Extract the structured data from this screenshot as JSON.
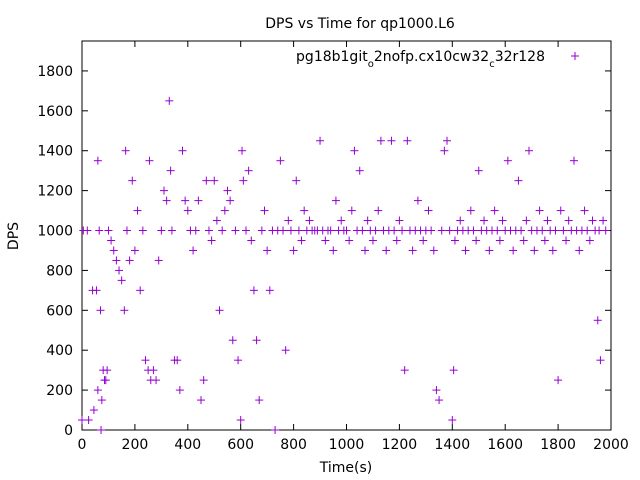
{
  "chart_data": {
    "type": "scatter",
    "title": "DPS vs Time for qp1000.L6",
    "xlabel": "Time(s)",
    "ylabel": "DPS",
    "xlim": [
      0,
      2000
    ],
    "ylim": [
      0,
      1950
    ],
    "xticks": [
      0,
      200,
      400,
      600,
      800,
      1000,
      1200,
      1400,
      1600,
      1800,
      2000
    ],
    "yticks": [
      0,
      200,
      400,
      600,
      800,
      1000,
      1200,
      1400,
      1600,
      1800
    ],
    "grid": false,
    "legend_position": "top-right",
    "marker": "plus",
    "color": "#9400d3",
    "series": [
      {
        "name_parts": [
          {
            "text": "pg18b1git",
            "sub": false
          },
          {
            "text": "o",
            "sub": true
          },
          {
            "text": "2nofp.cx10cw32",
            "sub": false
          },
          {
            "text": "c",
            "sub": true
          },
          {
            "text": "32r128",
            "sub": false
          }
        ],
        "points": [
          [
            0,
            50
          ],
          [
            5,
            1000
          ],
          [
            20,
            1000
          ],
          [
            25,
            50
          ],
          [
            40,
            700
          ],
          [
            45,
            100
          ],
          [
            55,
            700
          ],
          [
            60,
            1350
          ],
          [
            60,
            200
          ],
          [
            65,
            1000
          ],
          [
            70,
            600
          ],
          [
            72,
            0
          ],
          [
            75,
            150
          ],
          [
            80,
            300
          ],
          [
            85,
            250
          ],
          [
            90,
            250
          ],
          [
            95,
            300
          ],
          [
            100,
            1000
          ],
          [
            110,
            950
          ],
          [
            120,
            900
          ],
          [
            130,
            850
          ],
          [
            140,
            800
          ],
          [
            150,
            750
          ],
          [
            160,
            600
          ],
          [
            165,
            1400
          ],
          [
            170,
            1000
          ],
          [
            180,
            850
          ],
          [
            190,
            1250
          ],
          [
            200,
            900
          ],
          [
            210,
            1100
          ],
          [
            220,
            700
          ],
          [
            230,
            1000
          ],
          [
            240,
            350
          ],
          [
            250,
            300
          ],
          [
            255,
            1350
          ],
          [
            260,
            250
          ],
          [
            270,
            300
          ],
          [
            280,
            250
          ],
          [
            290,
            850
          ],
          [
            300,
            1000
          ],
          [
            310,
            1200
          ],
          [
            320,
            1150
          ],
          [
            330,
            1650
          ],
          [
            335,
            1300
          ],
          [
            340,
            1000
          ],
          [
            350,
            350
          ],
          [
            360,
            350
          ],
          [
            370,
            200
          ],
          [
            380,
            1400
          ],
          [
            390,
            1150
          ],
          [
            400,
            1100
          ],
          [
            410,
            1000
          ],
          [
            420,
            900
          ],
          [
            430,
            1000
          ],
          [
            440,
            1150
          ],
          [
            450,
            150
          ],
          [
            460,
            250
          ],
          [
            470,
            1250
          ],
          [
            480,
            1000
          ],
          [
            490,
            950
          ],
          [
            500,
            1250
          ],
          [
            510,
            1050
          ],
          [
            520,
            600
          ],
          [
            530,
            1000
          ],
          [
            540,
            1100
          ],
          [
            550,
            1200
          ],
          [
            560,
            1150
          ],
          [
            570,
            450
          ],
          [
            580,
            1000
          ],
          [
            590,
            350
          ],
          [
            600,
            50
          ],
          [
            605,
            1400
          ],
          [
            610,
            1250
          ],
          [
            620,
            1000
          ],
          [
            630,
            1300
          ],
          [
            640,
            950
          ],
          [
            650,
            700
          ],
          [
            660,
            450
          ],
          [
            670,
            150
          ],
          [
            680,
            1000
          ],
          [
            690,
            1100
          ],
          [
            700,
            900
          ],
          [
            710,
            700
          ],
          [
            720,
            1000
          ],
          [
            730,
            0
          ],
          [
            740,
            1000
          ],
          [
            750,
            1350
          ],
          [
            760,
            1000
          ],
          [
            770,
            400
          ],
          [
            780,
            1050
          ],
          [
            790,
            1000
          ],
          [
            800,
            900
          ],
          [
            810,
            1250
          ],
          [
            820,
            1000
          ],
          [
            830,
            950
          ],
          [
            840,
            1100
          ],
          [
            850,
            1000
          ],
          [
            860,
            1050
          ],
          [
            870,
            1000
          ],
          [
            880,
            1000
          ],
          [
            890,
            1000
          ],
          [
            900,
            1450
          ],
          [
            910,
            1000
          ],
          [
            920,
            950
          ],
          [
            930,
            1000
          ],
          [
            940,
            1000
          ],
          [
            950,
            900
          ],
          [
            960,
            1150
          ],
          [
            970,
            1000
          ],
          [
            980,
            1050
          ],
          [
            990,
            1000
          ],
          [
            1000,
            1000
          ],
          [
            1010,
            950
          ],
          [
            1020,
            1100
          ],
          [
            1030,
            1400
          ],
          [
            1040,
            1000
          ],
          [
            1050,
            1300
          ],
          [
            1060,
            1000
          ],
          [
            1070,
            900
          ],
          [
            1080,
            1050
          ],
          [
            1090,
            1000
          ],
          [
            1100,
            950
          ],
          [
            1110,
            1000
          ],
          [
            1120,
            1100
          ],
          [
            1130,
            1450
          ],
          [
            1140,
            1000
          ],
          [
            1150,
            900
          ],
          [
            1160,
            1000
          ],
          [
            1170,
            1450
          ],
          [
            1180,
            1000
          ],
          [
            1190,
            950
          ],
          [
            1200,
            1050
          ],
          [
            1210,
            1000
          ],
          [
            1220,
            300
          ],
          [
            1230,
            1450
          ],
          [
            1240,
            1000
          ],
          [
            1250,
            900
          ],
          [
            1260,
            1000
          ],
          [
            1270,
            1150
          ],
          [
            1280,
            1000
          ],
          [
            1290,
            950
          ],
          [
            1300,
            1000
          ],
          [
            1310,
            1100
          ],
          [
            1320,
            1000
          ],
          [
            1330,
            900
          ],
          [
            1340,
            200
          ],
          [
            1350,
            150
          ],
          [
            1360,
            1000
          ],
          [
            1370,
            1400
          ],
          [
            1380,
            1450
          ],
          [
            1390,
            1000
          ],
          [
            1400,
            50
          ],
          [
            1405,
            300
          ],
          [
            1410,
            950
          ],
          [
            1420,
            1000
          ],
          [
            1430,
            1050
          ],
          [
            1440,
            1000
          ],
          [
            1450,
            900
          ],
          [
            1460,
            1000
          ],
          [
            1470,
            1100
          ],
          [
            1480,
            1000
          ],
          [
            1490,
            950
          ],
          [
            1500,
            1300
          ],
          [
            1510,
            1000
          ],
          [
            1520,
            1050
          ],
          [
            1530,
            1000
          ],
          [
            1540,
            900
          ],
          [
            1550,
            1000
          ],
          [
            1560,
            1100
          ],
          [
            1570,
            1000
          ],
          [
            1580,
            950
          ],
          [
            1590,
            1050
          ],
          [
            1600,
            1000
          ],
          [
            1610,
            1350
          ],
          [
            1620,
            1000
          ],
          [
            1630,
            900
          ],
          [
            1640,
            1000
          ],
          [
            1650,
            1250
          ],
          [
            1660,
            1000
          ],
          [
            1670,
            950
          ],
          [
            1680,
            1050
          ],
          [
            1690,
            1400
          ],
          [
            1700,
            1000
          ],
          [
            1710,
            900
          ],
          [
            1720,
            1000
          ],
          [
            1730,
            1100
          ],
          [
            1740,
            1000
          ],
          [
            1750,
            950
          ],
          [
            1760,
            1050
          ],
          [
            1770,
            1000
          ],
          [
            1780,
            900
          ],
          [
            1790,
            1000
          ],
          [
            1800,
            250
          ],
          [
            1810,
            1100
          ],
          [
            1820,
            1000
          ],
          [
            1830,
            950
          ],
          [
            1840,
            1050
          ],
          [
            1850,
            1000
          ],
          [
            1860,
            1350
          ],
          [
            1870,
            1000
          ],
          [
            1880,
            900
          ],
          [
            1890,
            1000
          ],
          [
            1900,
            1100
          ],
          [
            1910,
            1000
          ],
          [
            1920,
            950
          ],
          [
            1930,
            1050
          ],
          [
            1940,
            1000
          ],
          [
            1950,
            550
          ],
          [
            1955,
            1000
          ],
          [
            1960,
            350
          ],
          [
            1970,
            1050
          ],
          [
            1980,
            1000
          ]
        ]
      }
    ]
  }
}
